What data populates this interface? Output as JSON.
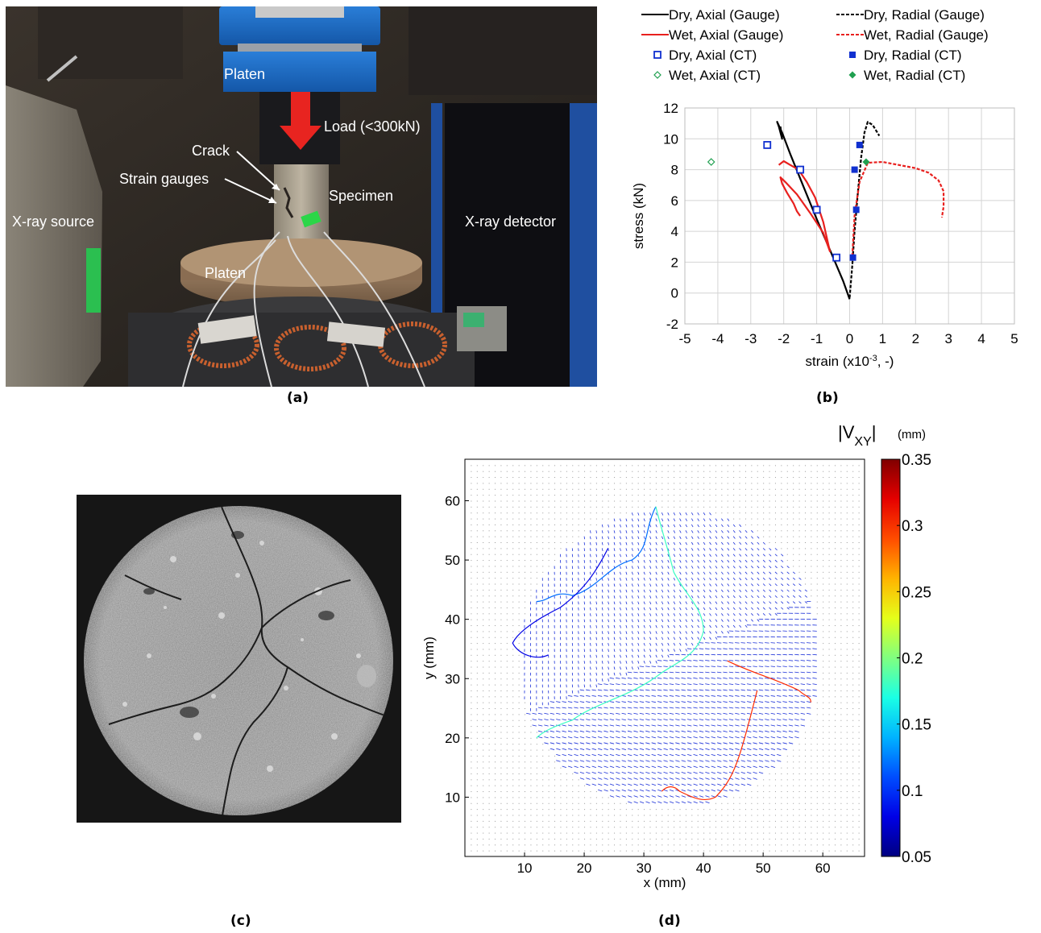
{
  "panel_a": {
    "caption": "(a)",
    "labels": {
      "platen_top": "Platen",
      "load": "Load (<300kN)",
      "crack": "Crack",
      "strain_gauges": "Strain gauges",
      "specimen": "Specimen",
      "xray_source": "X-ray source",
      "xray_detector": "X-ray detector",
      "platen_bottom": "Platen"
    }
  },
  "panel_b": {
    "caption": "(b)"
  },
  "panel_c": {
    "caption": "(c)"
  },
  "panel_d": {
    "caption": "(d)"
  },
  "colors": {
    "dry": "#000000",
    "wet": "#e8201e",
    "ct_blue": "#1030d0",
    "ct_green": "#20a050",
    "photo_bg": "#2a2622",
    "ct_dark": "#1a1a1a"
  },
  "chart_data": [
    {
      "type": "line",
      "xlabel": "strain (x10",
      "xlabel_sup": "-3",
      "xlabel_tail": ", -)",
      "ylabel": "stress (kN)",
      "xlim": [
        -5,
        5
      ],
      "ylim": [
        -2,
        12
      ],
      "xticks": [
        "-5",
        "-4",
        "-3",
        "-2",
        "-1",
        "0",
        "1",
        "2",
        "3",
        "4",
        "5"
      ],
      "yticks": [
        "-2",
        "0",
        "2",
        "4",
        "6",
        "8",
        "10",
        "12"
      ],
      "grid": true,
      "legend_position": "top",
      "legend": [
        {
          "label": "Dry, Axial (Gauge)",
          "style": "solid",
          "color": "#000000"
        },
        {
          "label": "Dry, Radial (Gauge)",
          "style": "dashed",
          "color": "#000000"
        },
        {
          "label": "Wet, Axial (Gauge)",
          "style": "solid",
          "color": "#e8201e"
        },
        {
          "label": "Wet, Radial (Gauge)",
          "style": "dashed",
          "color": "#e8201e"
        },
        {
          "label": "Dry, Axial (CT)",
          "style": "open-square",
          "color": "#1030d0"
        },
        {
          "label": "Dry, Radial (CT)",
          "style": "filled-square",
          "color": "#1030d0"
        },
        {
          "label": "Wet, Axial (CT)",
          "style": "open-diamond",
          "color": "#20a050"
        },
        {
          "label": "Wet, Radial (CT)",
          "style": "filled-diamond",
          "color": "#20a050"
        }
      ],
      "series": [
        {
          "name": "Dry, Axial (Gauge)",
          "dash": false,
          "color": "#000000",
          "x": [
            0,
            -0.2,
            -0.6,
            -1.0,
            -1.4,
            -1.8,
            -2.05,
            -2.2,
            -2.15,
            -2.05,
            -2.1
          ],
          "y": [
            -0.4,
            0.8,
            2.8,
            4.8,
            6.9,
            9.0,
            10.4,
            11.1,
            10.8,
            10.0,
            10.8
          ]
        },
        {
          "name": "Dry, Radial (Gauge)",
          "dash": true,
          "color": "#000000",
          "x": [
            0,
            0.08,
            0.15,
            0.25,
            0.35,
            0.45,
            0.55,
            0.7,
            0.9
          ],
          "y": [
            -0.3,
            1.8,
            4.0,
            6.5,
            8.8,
            10.4,
            11.1,
            10.9,
            10.2
          ]
        },
        {
          "name": "Wet, Axial (Gauge)",
          "dash": false,
          "color": "#e8201e",
          "x": [
            -2.15,
            -2.0,
            -1.8,
            -1.55,
            -1.3,
            -1.05,
            -0.8,
            -0.6,
            -0.8,
            -1.2,
            -1.6,
            -1.95,
            -2.1,
            -2.05,
            -1.9,
            -1.7,
            -1.6,
            -1.5
          ],
          "y": [
            8.3,
            8.55,
            8.3,
            8.0,
            7.2,
            6.2,
            4.6,
            2.7,
            3.9,
            5.2,
            6.4,
            7.2,
            7.5,
            7.1,
            6.5,
            5.8,
            5.3,
            5.0
          ]
        },
        {
          "name": "Wet, Radial (Gauge)",
          "dash": true,
          "color": "#e8201e",
          "x": [
            0.08,
            0.15,
            0.3,
            0.55,
            1.0,
            1.5,
            2.0,
            2.4,
            2.7,
            2.85,
            2.85,
            2.8
          ],
          "y": [
            2.4,
            5.0,
            7.2,
            8.45,
            8.5,
            8.3,
            8.1,
            7.8,
            7.3,
            6.6,
            5.6,
            4.9
          ]
        }
      ],
      "points": [
        {
          "name": "Dry, Axial (CT)",
          "marker": "open-square",
          "color": "#1030d0",
          "x": [
            -2.5,
            -1.5,
            -1.0,
            -0.4
          ],
          "y": [
            9.6,
            8.0,
            5.4,
            2.3
          ]
        },
        {
          "name": "Dry, Radial (CT)",
          "marker": "filled-square",
          "color": "#1030d0",
          "x": [
            0.3,
            0.15,
            0.2,
            0.1
          ],
          "y": [
            9.6,
            8.0,
            5.4,
            2.3
          ]
        },
        {
          "name": "Wet, Axial (CT)",
          "marker": "open-diamond",
          "color": "#20a050",
          "x": [
            -4.2
          ],
          "y": [
            8.5
          ]
        },
        {
          "name": "Wet, Radial (CT)",
          "marker": "filled-diamond",
          "color": "#20a050",
          "x": [
            0.5
          ],
          "y": [
            8.5
          ]
        }
      ]
    },
    {
      "type": "heatmap",
      "xlabel": "x (mm)",
      "ylabel": "y (mm)",
      "xlim": [
        0,
        67
      ],
      "ylim": [
        0,
        67
      ],
      "xticks": [
        "10",
        "20",
        "30",
        "40",
        "50",
        "60"
      ],
      "yticks": [
        "10",
        "20",
        "30",
        "40",
        "50",
        "60"
      ],
      "colorbar_title": "|V",
      "colorbar_sub": "XY",
      "colorbar_title_tail": "|",
      "colorbar_unit": "(mm)",
      "colorbar_range": [
        0.05,
        0.35
      ],
      "colorbar_ticks": [
        "0.35",
        "0.3",
        "0.25",
        "0.2",
        "0.15",
        "0.1",
        "0.05"
      ],
      "field_center_mm": [
        34.5,
        33.5
      ],
      "field_radius_mm": 25.5
    }
  ]
}
